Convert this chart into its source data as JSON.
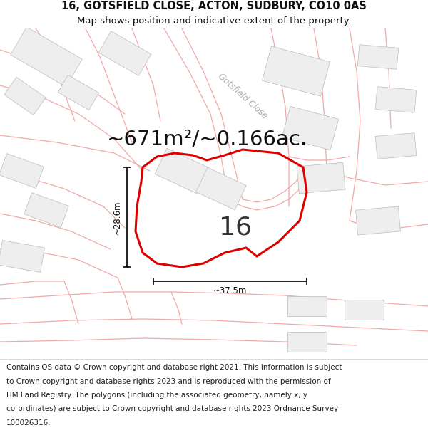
{
  "title_line1": "16, GOTSFIELD CLOSE, ACTON, SUDBURY, CO10 0AS",
  "title_line2": "Map shows position and indicative extent of the property.",
  "area_text": "~671m²/~0.166ac.",
  "number_label": "16",
  "dim_horiz": "~37.5m",
  "dim_vert": "~28.6m",
  "road_label": "Gotsfield Close",
  "bg_color": "#ffffff",
  "map_bg": "#ffffff",
  "building_fill": "#eeeeee",
  "building_stroke": "#bbbbbb",
  "main_polygon_fill": "#ffffff",
  "main_polygon_stroke": "#dd0000",
  "road_lines_color": "#f0aaaa",
  "road_outline_color": "#ddcccc",
  "dim_line_color": "#111111",
  "title_fontsize": 10.5,
  "subtitle_fontsize": 9.5,
  "area_fontsize": 21,
  "number_fontsize": 26,
  "footer_fontsize": 7.5,
  "road_label_fontsize": 8.5,
  "footer_lines": [
    "Contains OS data © Crown copyright and database right 2021. This information is subject",
    "to Crown copyright and database rights 2023 and is reproduced with the permission of",
    "HM Land Registry. The polygons (including the associated geometry, namely x, y",
    "co-ordinates) are subject to Crown copyright and database rights 2023 Ordnance Survey",
    "100026316."
  ]
}
